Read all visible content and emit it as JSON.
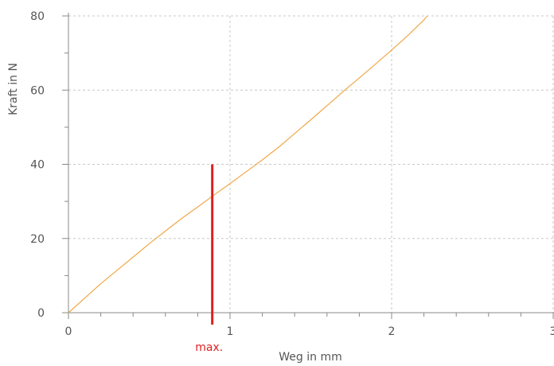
{
  "chart_data": {
    "type": "line",
    "xlabel": "Weg in mm",
    "ylabel": "Kraft in N",
    "xlim": [
      0,
      3
    ],
    "ylim": [
      0,
      80
    ],
    "x_ticks": [
      0,
      1,
      2,
      3
    ],
    "x_tick_labels": [
      "0",
      "1",
      "2",
      "3"
    ],
    "y_ticks": [
      0,
      20,
      40,
      60,
      80
    ],
    "y_tick_labels": [
      "0",
      "20",
      "40",
      "60",
      "80"
    ],
    "x_minor_step": 0.2,
    "y_minor_step": 10,
    "grid": true,
    "series": [
      {
        "color": "#f0a848",
        "x": [
          0,
          0.1,
          0.2,
          0.3,
          0.4,
          0.5,
          0.6,
          0.7,
          0.8,
          0.9,
          1.0,
          1.1,
          1.2,
          1.3,
          1.4,
          1.5,
          1.6,
          1.7,
          1.8,
          1.9,
          2.0,
          2.1,
          2.2,
          2.22
        ],
        "y": [
          0,
          3.9,
          7.8,
          11.4,
          15.0,
          18.6,
          22.0,
          25.4,
          28.5,
          31.7,
          34.8,
          38.0,
          41.2,
          44.6,
          48.3,
          52.0,
          55.8,
          59.6,
          63.3,
          67.0,
          70.8,
          74.7,
          78.9,
          80
        ]
      }
    ],
    "marker": {
      "label": "max.",
      "x": 0.89,
      "y_top": 40,
      "color": "#e02020"
    }
  }
}
